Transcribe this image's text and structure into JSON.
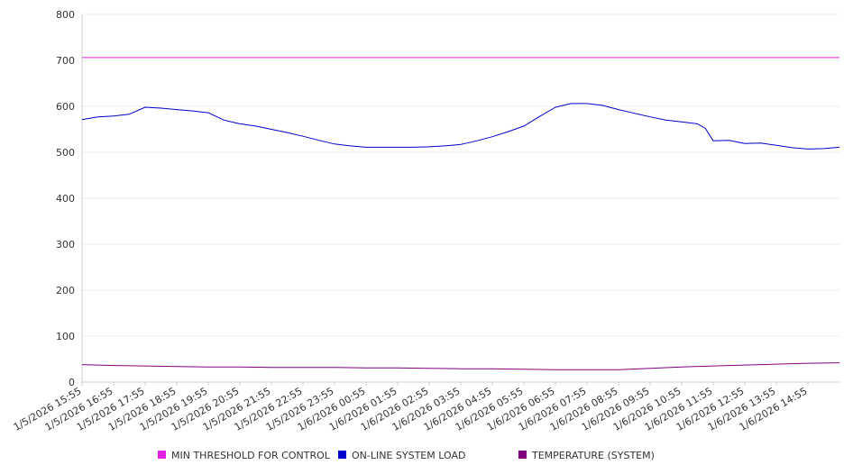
{
  "chart_data": {
    "type": "line",
    "y_ticks": [
      "0",
      "100",
      "200",
      "300",
      "400",
      "500",
      "600",
      "700",
      "800"
    ],
    "ylim": [
      0,
      800
    ],
    "grid": true,
    "legend_position": "bottom",
    "categories": [
      "1/5/2026 15:55",
      "1/5/2026 16:55",
      "1/5/2026 17:55",
      "1/5/2026 18:55",
      "1/5/2026 19:55",
      "1/5/2026 20:55",
      "1/5/2026 21:55",
      "1/5/2026 22:55",
      "1/5/2026 23:55",
      "1/6/2026 00:55",
      "1/6/2026 01:55",
      "1/6/2026 02:55",
      "1/6/2026 03:55",
      "1/6/2026 04:55",
      "1/6/2026 05:55",
      "1/6/2026 06:55",
      "1/6/2026 07:55",
      "1/6/2026 08:55",
      "1/6/2026 09:55",
      "1/6/2026 10:55",
      "1/6/2026 11:55",
      "1/6/2026 12:55",
      "1/6/2026 13:55",
      "1/6/2026 14:55"
    ],
    "x_end": "1/6/2026 15:55",
    "series": [
      {
        "name": "MIN THRESHOLD FOR CONTROL",
        "color": "#e020e0",
        "points": [
          [
            "1/5/2026 15:55",
            706
          ],
          [
            "1/6/2026 15:55",
            706
          ]
        ]
      },
      {
        "name": "ON-LINE SYSTEM LOAD",
        "color": "#0000cc",
        "points": [
          [
            "1/5/2026 15:55",
            571
          ],
          [
            "1/5/2026 16:25",
            577
          ],
          [
            "1/5/2026 16:55",
            579
          ],
          [
            "1/5/2026 17:25",
            583
          ],
          [
            "1/5/2026 17:55",
            598
          ],
          [
            "1/5/2026 18:25",
            596
          ],
          [
            "1/5/2026 18:55",
            593
          ],
          [
            "1/5/2026 19:25",
            590
          ],
          [
            "1/5/2026 19:55",
            586
          ],
          [
            "1/5/2026 20:25",
            570
          ],
          [
            "1/5/2026 20:55",
            562
          ],
          [
            "1/5/2026 21:25",
            557
          ],
          [
            "1/5/2026 21:55",
            550
          ],
          [
            "1/5/2026 22:25",
            543
          ],
          [
            "1/5/2026 22:55",
            535
          ],
          [
            "1/5/2026 23:25",
            526
          ],
          [
            "1/5/2026 23:55",
            518
          ],
          [
            "1/6/2026 00:25",
            514
          ],
          [
            "1/6/2026 00:55",
            511
          ],
          [
            "1/6/2026 01:25",
            511
          ],
          [
            "1/6/2026 01:55",
            511
          ],
          [
            "1/6/2026 02:25",
            511
          ],
          [
            "1/6/2026 02:55",
            512
          ],
          [
            "1/6/2026 03:25",
            514
          ],
          [
            "1/6/2026 03:55",
            517
          ],
          [
            "1/6/2026 04:25",
            525
          ],
          [
            "1/6/2026 04:55",
            534
          ],
          [
            "1/6/2026 05:25",
            545
          ],
          [
            "1/6/2026 05:55",
            557
          ],
          [
            "1/6/2026 06:25",
            578
          ],
          [
            "1/6/2026 06:55",
            598
          ],
          [
            "1/6/2026 07:25",
            606
          ],
          [
            "1/6/2026 07:55",
            606
          ],
          [
            "1/6/2026 08:25",
            602
          ],
          [
            "1/6/2026 08:55",
            593
          ],
          [
            "1/6/2026 09:25",
            585
          ],
          [
            "1/6/2026 09:55",
            577
          ],
          [
            "1/6/2026 10:25",
            570
          ],
          [
            "1/6/2026 10:55",
            566
          ],
          [
            "1/6/2026 11:25",
            562
          ],
          [
            "1/6/2026 11:40",
            552
          ],
          [
            "1/6/2026 11:55",
            525
          ],
          [
            "1/6/2026 12:25",
            526
          ],
          [
            "1/6/2026 12:55",
            519
          ],
          [
            "1/6/2026 13:25",
            520
          ],
          [
            "1/6/2026 13:55",
            515
          ],
          [
            "1/6/2026 14:25",
            510
          ],
          [
            "1/6/2026 14:55",
            507
          ],
          [
            "1/6/2026 15:25",
            508
          ],
          [
            "1/6/2026 15:55",
            511
          ]
        ]
      },
      {
        "name": "TEMPERATURE (SYSTEM)",
        "color": "#800080",
        "points": [
          [
            "1/5/2026 15:55",
            38
          ],
          [
            "1/5/2026 16:55",
            36
          ],
          [
            "1/5/2026 17:55",
            35
          ],
          [
            "1/5/2026 18:55",
            34
          ],
          [
            "1/5/2026 19:55",
            33
          ],
          [
            "1/5/2026 20:55",
            33
          ],
          [
            "1/5/2026 21:55",
            32
          ],
          [
            "1/5/2026 22:55",
            32
          ],
          [
            "1/5/2026 23:55",
            32
          ],
          [
            "1/6/2026 00:55",
            31
          ],
          [
            "1/6/2026 01:55",
            31
          ],
          [
            "1/6/2026 02:55",
            30
          ],
          [
            "1/6/2026 03:55",
            29
          ],
          [
            "1/6/2026 04:55",
            29
          ],
          [
            "1/6/2026 05:55",
            28
          ],
          [
            "1/6/2026 06:55",
            27
          ],
          [
            "1/6/2026 07:55",
            27
          ],
          [
            "1/6/2026 08:55",
            27
          ],
          [
            "1/6/2026 09:55",
            30
          ],
          [
            "1/6/2026 10:55",
            33
          ],
          [
            "1/6/2026 11:55",
            35
          ],
          [
            "1/6/2026 12:55",
            37
          ],
          [
            "1/6/2026 13:55",
            39
          ],
          [
            "1/6/2026 14:55",
            41
          ],
          [
            "1/6/2026 15:55",
            42
          ]
        ]
      }
    ]
  }
}
